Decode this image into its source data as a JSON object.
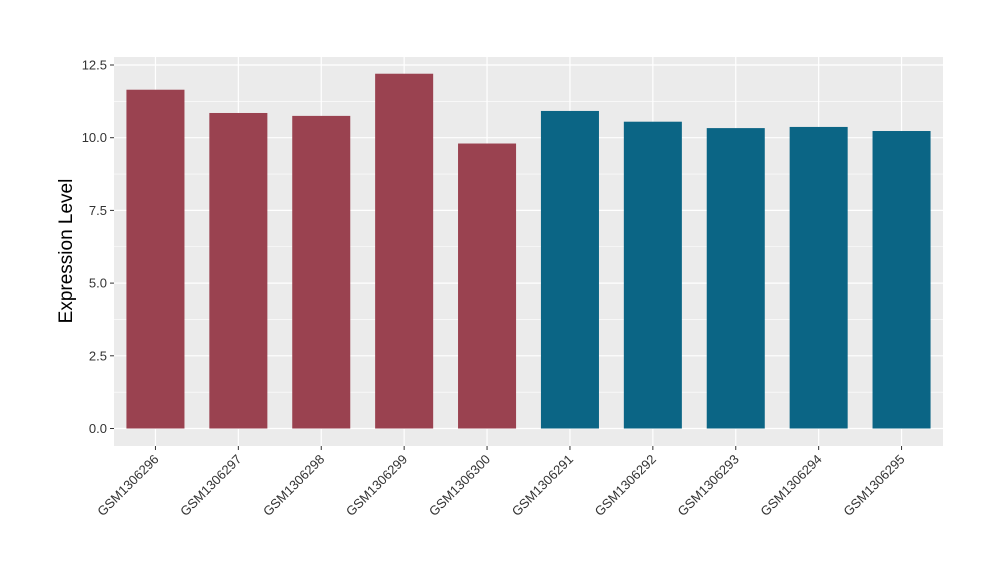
{
  "chart_data": {
    "type": "bar",
    "title": "",
    "xlabel": "",
    "ylabel": "Expression Level",
    "categories": [
      "GSM1306296",
      "GSM1306297",
      "GSM1306298",
      "GSM1306299",
      "GSM1306300",
      "GSM1306291",
      "GSM1306292",
      "GSM1306293",
      "GSM1306294",
      "GSM1306295"
    ],
    "values": [
      11.65,
      10.85,
      10.75,
      12.2,
      9.8,
      10.92,
      10.55,
      10.33,
      10.37,
      10.23
    ],
    "bar_colors": [
      "#9a4250",
      "#9a4250",
      "#9a4250",
      "#9a4250",
      "#9a4250",
      "#0b6585",
      "#0b6585",
      "#0b6585",
      "#0b6585",
      "#0b6585"
    ],
    "ylim": [
      0,
      13.0
    ],
    "yticks": [
      0,
      2.5,
      5,
      7.5,
      10,
      12.5
    ],
    "ytick_labels": [
      "0.0",
      "2.5",
      "5.0",
      "7.5",
      "10.0",
      "12.5"
    ],
    "grid": true,
    "panel_background": "#ebebeb",
    "grid_color": "#ffffff"
  }
}
